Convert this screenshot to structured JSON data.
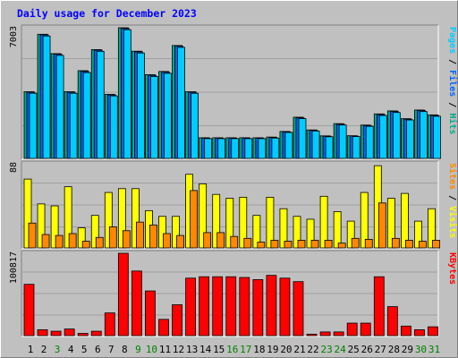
{
  "title": "Daily usage for December 2023",
  "chart_data": [
    {
      "type": "bar",
      "name": "pages-files-hits",
      "categories": [
        "1",
        "2",
        "3",
        "4",
        "5",
        "6",
        "7",
        "8",
        "9",
        "10",
        "11",
        "12",
        "13",
        "14",
        "15",
        "16",
        "17",
        "18",
        "19",
        "20",
        "21",
        "22",
        "23",
        "24",
        "25",
        "26",
        "27",
        "28",
        "29",
        "30",
        "31"
      ],
      "ymax_label": "7003",
      "ylim": [
        0,
        7003
      ],
      "legend": [
        {
          "text": "Pages",
          "color": "#00ccff"
        },
        {
          "text": " / ",
          "color": "#000000"
        },
        {
          "text": "Files",
          "color": "#0066ff"
        },
        {
          "text": " / ",
          "color": "#000000"
        },
        {
          "text": "Hits",
          "color": "#00aa88"
        }
      ],
      "series": [
        {
          "name": "Hits",
          "color": "#00aa88",
          "values": [
            3575,
            6653,
            5616,
            3575,
            4702,
            5832,
            3436,
            7003,
            5746,
            4490,
            4659,
            6052,
            3575,
            1108,
            1108,
            1108,
            1108,
            1108,
            1145,
            1445,
            2209,
            1527,
            1208,
            1863,
            1216,
            1787,
            2386,
            2546,
            2129,
            2594,
            2334
          ]
        },
        {
          "name": "Files",
          "color": "#0066ff",
          "values": [
            3545,
            6620,
            5580,
            3545,
            4660,
            5800,
            3400,
            6960,
            5710,
            4450,
            4620,
            6010,
            3545,
            1090,
            1090,
            1090,
            1090,
            1090,
            1120,
            1420,
            2170,
            1500,
            1190,
            1830,
            1200,
            1760,
            2350,
            2510,
            2100,
            2560,
            2300
          ]
        },
        {
          "name": "Pages",
          "color": "#00ccff",
          "values": [
            3490,
            6560,
            5520,
            3490,
            4600,
            5740,
            3350,
            6900,
            5650,
            4390,
            4560,
            5950,
            3490,
            1060,
            1060,
            1060,
            1060,
            1060,
            1090,
            1390,
            2130,
            1470,
            1160,
            1790,
            1170,
            1720,
            2300,
            2460,
            2060,
            2510,
            2260
          ]
        }
      ]
    },
    {
      "type": "bar",
      "name": "visits-sites",
      "categories": [
        "1",
        "2",
        "3",
        "4",
        "5",
        "6",
        "7",
        "8",
        "9",
        "10",
        "11",
        "12",
        "13",
        "14",
        "15",
        "16",
        "17",
        "18",
        "19",
        "20",
        "21",
        "22",
        "23",
        "24",
        "25",
        "26",
        "27",
        "28",
        "29",
        "30",
        "31"
      ],
      "ymax_label": "88",
      "ylim": [
        0,
        88
      ],
      "legend": [
        {
          "text": "Sites",
          "color": "#ff8800"
        },
        {
          "text": " / ",
          "color": "#000000"
        },
        {
          "text": "Visits",
          "color": "#ffff00"
        }
      ],
      "series": [
        {
          "name": "Visits",
          "color": "#ffff00",
          "values": [
            72,
            46,
            44,
            64,
            21,
            34,
            58,
            62,
            62,
            39,
            33,
            33,
            77,
            67,
            56,
            52,
            53,
            34,
            53,
            41,
            33,
            30,
            54,
            38,
            28,
            58,
            86,
            52,
            57,
            28,
            41
          ]
        },
        {
          "name": "Sites",
          "color": "#ff8800",
          "values": [
            26,
            14,
            13,
            15,
            7,
            11,
            22,
            18,
            27,
            24,
            15,
            13,
            60,
            16,
            16,
            12,
            10,
            6,
            8,
            7,
            8,
            8,
            8,
            5,
            10,
            9,
            47,
            10,
            8,
            7,
            8
          ]
        }
      ]
    },
    {
      "type": "bar",
      "name": "kbytes",
      "categories": [
        "1",
        "2",
        "3",
        "4",
        "5",
        "6",
        "7",
        "8",
        "9",
        "10",
        "11",
        "12",
        "13",
        "14",
        "15",
        "16",
        "17",
        "18",
        "19",
        "20",
        "21",
        "22",
        "23",
        "24",
        "25",
        "26",
        "27",
        "28",
        "29",
        "30",
        "31"
      ],
      "ymax_label": "100817",
      "ylim": [
        0,
        100817
      ],
      "legend": [
        {
          "text": "KBytes",
          "color": "#ff0000"
        }
      ],
      "series": [
        {
          "name": "KBytes",
          "color": "#ff0000",
          "values": [
            62800,
            7200,
            5400,
            8100,
            2700,
            5400,
            27800,
            100817,
            79100,
            54700,
            19900,
            37800,
            70400,
            72100,
            72100,
            72100,
            71200,
            68600,
            73800,
            70400,
            66100,
            1800,
            4500,
            4500,
            15300,
            15300,
            72100,
            35500,
            11700,
            7200,
            10800
          ]
        }
      ]
    }
  ],
  "days_green": [
    "3",
    "9",
    "10",
    "16",
    "17",
    "23",
    "24",
    "30",
    "31"
  ]
}
